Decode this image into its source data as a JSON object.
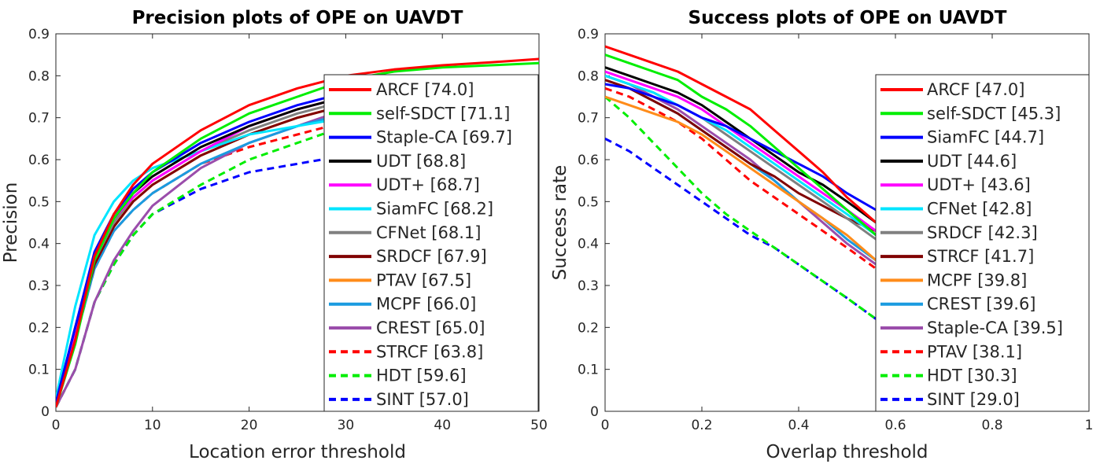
{
  "chart_data": [
    {
      "type": "line",
      "title": "Precision plots of OPE on UAVDT",
      "xlabel": "Location error threshold",
      "ylabel": "Precision",
      "xlim": [
        0,
        50
      ],
      "ylim": [
        0,
        0.9
      ],
      "xticks": [
        "0",
        "10",
        "20",
        "30",
        "40",
        "50"
      ],
      "yticks": [
        "0",
        "0.1",
        "0.2",
        "0.3",
        "0.4",
        "0.5",
        "0.6",
        "0.7",
        "0.8",
        "0.9"
      ],
      "legend_position": "right",
      "series": [
        {
          "name": "ARCF [74.0]",
          "color": "#ff0000",
          "dash": "solid",
          "x": [
            0,
            2,
            4,
            6,
            8,
            10,
            15,
            20,
            25,
            30,
            35,
            40,
            45,
            50
          ],
          "y": [
            0.01,
            0.17,
            0.37,
            0.47,
            0.54,
            0.59,
            0.67,
            0.73,
            0.77,
            0.8,
            0.815,
            0.825,
            0.832,
            0.84
          ]
        },
        {
          "name": "self-SDCT [71.1]",
          "color": "#00ee00",
          "dash": "solid",
          "x": [
            0,
            2,
            4,
            6,
            8,
            10,
            15,
            20,
            25,
            30,
            35,
            40,
            45,
            50
          ],
          "y": [
            0.01,
            0.16,
            0.36,
            0.46,
            0.52,
            0.57,
            0.65,
            0.71,
            0.75,
            0.79,
            0.81,
            0.82,
            0.825,
            0.83
          ]
        },
        {
          "name": "Staple-CA [69.7]",
          "color": "#0000ff",
          "dash": "solid",
          "x": [
            0,
            2,
            4,
            6,
            8,
            10,
            15,
            20,
            25,
            30
          ],
          "y": [
            0.02,
            0.2,
            0.38,
            0.47,
            0.53,
            0.57,
            0.64,
            0.69,
            0.73,
            0.76
          ]
        },
        {
          "name": "UDT [68.8]",
          "color": "#000000",
          "dash": "solid",
          "x": [
            0,
            2,
            4,
            6,
            8,
            10,
            15,
            20,
            25,
            30
          ],
          "y": [
            0.02,
            0.2,
            0.37,
            0.46,
            0.52,
            0.56,
            0.63,
            0.68,
            0.72,
            0.75
          ]
        },
        {
          "name": "UDT+ [68.7]",
          "color": "#ff00ff",
          "dash": "solid",
          "x": [
            0,
            2,
            4,
            6,
            8,
            10,
            15,
            20,
            25,
            30
          ],
          "y": [
            0.02,
            0.19,
            0.37,
            0.46,
            0.51,
            0.55,
            0.62,
            0.68,
            0.72,
            0.75
          ]
        },
        {
          "name": "SiamFC [68.2]",
          "color": "#00e5ff",
          "dash": "solid",
          "x": [
            0,
            2,
            4,
            6,
            8,
            10,
            15,
            20,
            25,
            30
          ],
          "y": [
            0.03,
            0.25,
            0.42,
            0.5,
            0.55,
            0.58,
            0.62,
            0.66,
            0.68,
            0.7
          ]
        },
        {
          "name": "CFNet [68.1]",
          "color": "#808080",
          "dash": "solid",
          "x": [
            0,
            2,
            4,
            6,
            8,
            10,
            15,
            20,
            25,
            30
          ],
          "y": [
            0.02,
            0.19,
            0.36,
            0.45,
            0.51,
            0.55,
            0.62,
            0.67,
            0.71,
            0.74
          ]
        },
        {
          "name": "SRDCF [67.9]",
          "color": "#800000",
          "dash": "solid",
          "x": [
            0,
            2,
            4,
            6,
            8,
            10,
            15,
            20,
            25,
            30
          ],
          "y": [
            0.02,
            0.18,
            0.35,
            0.44,
            0.5,
            0.54,
            0.61,
            0.66,
            0.7,
            0.73
          ]
        },
        {
          "name": "PTAV [67.5]",
          "color": "#ff8c1a",
          "dash": "solid",
          "x": [
            0,
            2,
            4,
            6,
            8,
            10,
            15,
            20,
            25,
            30
          ],
          "y": [
            0.02,
            0.18,
            0.35,
            0.44,
            0.5,
            0.54,
            0.61,
            0.66,
            0.7,
            0.73
          ]
        },
        {
          "name": "MCPF [66.0]",
          "color": "#1a9be0",
          "dash": "solid",
          "x": [
            0,
            2,
            4,
            6,
            8,
            10,
            15,
            20,
            25,
            30
          ],
          "y": [
            0.02,
            0.17,
            0.34,
            0.43,
            0.48,
            0.52,
            0.59,
            0.64,
            0.68,
            0.71
          ]
        },
        {
          "name": "CREST [65.0]",
          "color": "#9b4dab",
          "dash": "solid",
          "x": [
            0,
            2,
            4,
            6,
            8,
            10,
            15,
            20,
            25,
            30
          ],
          "y": [
            0.01,
            0.1,
            0.26,
            0.36,
            0.43,
            0.49,
            0.58,
            0.64,
            0.68,
            0.72
          ]
        },
        {
          "name": "STRCF [63.8]",
          "color": "#ff0000",
          "dash": "dashed",
          "x": [
            0,
            2,
            4,
            6,
            8,
            10,
            15,
            20,
            25,
            30
          ],
          "y": [
            0.02,
            0.17,
            0.34,
            0.43,
            0.48,
            0.52,
            0.59,
            0.63,
            0.66,
            0.69
          ]
        },
        {
          "name": "HDT [59.6]",
          "color": "#00ee00",
          "dash": "dashed",
          "x": [
            0,
            2,
            4,
            6,
            8,
            10,
            15,
            20,
            25,
            30
          ],
          "y": [
            0.01,
            0.1,
            0.26,
            0.35,
            0.42,
            0.47,
            0.54,
            0.6,
            0.64,
            0.68
          ]
        },
        {
          "name": "SINT [57.0]",
          "color": "#0000ff",
          "dash": "dashed",
          "x": [
            0,
            2,
            4,
            6,
            8,
            10,
            15,
            20,
            25,
            30
          ],
          "y": [
            0.01,
            0.1,
            0.26,
            0.35,
            0.42,
            0.47,
            0.53,
            0.57,
            0.59,
            0.61
          ]
        }
      ]
    },
    {
      "type": "line",
      "title": "Success plots of OPE on UAVDT",
      "xlabel": "Overlap threshold",
      "ylabel": "Success rate",
      "xlim": [
        0,
        1
      ],
      "ylim": [
        0,
        0.9
      ],
      "xticks": [
        "0",
        "0.2",
        "0.4",
        "0.6",
        "0.8",
        "1"
      ],
      "yticks": [
        "0",
        "0.1",
        "0.2",
        "0.3",
        "0.4",
        "0.5",
        "0.6",
        "0.7",
        "0.8",
        "0.9"
      ],
      "legend_position": "right",
      "series": [
        {
          "name": "ARCF [47.0]",
          "color": "#ff0000",
          "dash": "solid",
          "x": [
            0,
            0.05,
            0.1,
            0.15,
            0.2,
            0.25,
            0.3,
            0.35,
            0.4,
            0.45,
            0.5,
            0.56
          ],
          "y": [
            0.87,
            0.85,
            0.83,
            0.81,
            0.78,
            0.75,
            0.72,
            0.67,
            0.62,
            0.57,
            0.51,
            0.45
          ]
        },
        {
          "name": "self-SDCT [45.3]",
          "color": "#00ee00",
          "dash": "solid",
          "x": [
            0,
            0.05,
            0.1,
            0.15,
            0.2,
            0.25,
            0.3,
            0.35,
            0.4,
            0.45,
            0.5,
            0.56
          ],
          "y": [
            0.85,
            0.83,
            0.81,
            0.79,
            0.75,
            0.72,
            0.68,
            0.63,
            0.58,
            0.53,
            0.48,
            0.42
          ]
        },
        {
          "name": "SiamFC [44.7]",
          "color": "#0000ff",
          "dash": "solid",
          "x": [
            0,
            0.05,
            0.1,
            0.15,
            0.2,
            0.25,
            0.3,
            0.35,
            0.4,
            0.45,
            0.5,
            0.56
          ],
          "y": [
            0.78,
            0.77,
            0.75,
            0.73,
            0.7,
            0.68,
            0.65,
            0.62,
            0.59,
            0.56,
            0.52,
            0.48
          ]
        },
        {
          "name": "UDT [44.6]",
          "color": "#000000",
          "dash": "solid",
          "x": [
            0,
            0.05,
            0.1,
            0.15,
            0.2,
            0.25,
            0.3,
            0.35,
            0.4,
            0.45,
            0.5,
            0.56
          ],
          "y": [
            0.82,
            0.8,
            0.78,
            0.76,
            0.73,
            0.69,
            0.65,
            0.61,
            0.57,
            0.54,
            0.5,
            0.45
          ]
        },
        {
          "name": "UDT+ [43.6]",
          "color": "#ff00ff",
          "dash": "solid",
          "x": [
            0,
            0.05,
            0.1,
            0.15,
            0.2,
            0.25,
            0.3,
            0.35,
            0.4,
            0.45,
            0.5,
            0.56
          ],
          "y": [
            0.81,
            0.79,
            0.77,
            0.75,
            0.72,
            0.68,
            0.64,
            0.6,
            0.56,
            0.52,
            0.48,
            0.43
          ]
        },
        {
          "name": "CFNet [42.8]",
          "color": "#00e5ff",
          "dash": "solid",
          "x": [
            0,
            0.05,
            0.1,
            0.15,
            0.2,
            0.25,
            0.3,
            0.35,
            0.4,
            0.45,
            0.5,
            0.56
          ],
          "y": [
            0.8,
            0.78,
            0.76,
            0.73,
            0.7,
            0.67,
            0.63,
            0.59,
            0.55,
            0.51,
            0.47,
            0.42
          ]
        },
        {
          "name": "SRDCF [42.3]",
          "color": "#808080",
          "dash": "solid",
          "x": [
            0,
            0.05,
            0.1,
            0.15,
            0.2,
            0.25,
            0.3,
            0.35,
            0.4,
            0.45,
            0.5,
            0.56
          ],
          "y": [
            0.8,
            0.78,
            0.76,
            0.73,
            0.7,
            0.66,
            0.62,
            0.58,
            0.54,
            0.5,
            0.46,
            0.41
          ]
        },
        {
          "name": "STRCF [41.7]",
          "color": "#800000",
          "dash": "solid",
          "x": [
            0,
            0.05,
            0.1,
            0.15,
            0.2,
            0.25,
            0.3,
            0.35,
            0.4,
            0.45,
            0.5,
            0.56
          ],
          "y": [
            0.79,
            0.77,
            0.74,
            0.71,
            0.67,
            0.63,
            0.59,
            0.56,
            0.52,
            0.49,
            0.46,
            0.43
          ]
        },
        {
          "name": "MCPF [39.8]",
          "color": "#ff8c1a",
          "dash": "solid",
          "x": [
            0,
            0.05,
            0.1,
            0.15,
            0.2,
            0.25,
            0.3,
            0.35,
            0.4,
            0.45,
            0.5,
            0.56
          ],
          "y": [
            0.75,
            0.73,
            0.71,
            0.69,
            0.66,
            0.62,
            0.58,
            0.54,
            0.5,
            0.46,
            0.42,
            0.36
          ]
        },
        {
          "name": "CREST [39.6]",
          "color": "#1a9be0",
          "dash": "solid",
          "x": [
            0,
            0.05,
            0.1,
            0.15,
            0.2,
            0.25,
            0.3,
            0.35,
            0.4,
            0.45,
            0.5,
            0.56
          ],
          "y": [
            0.79,
            0.77,
            0.74,
            0.71,
            0.67,
            0.63,
            0.59,
            0.55,
            0.5,
            0.46,
            0.41,
            0.36
          ]
        },
        {
          "name": "Staple-CA [39.5]",
          "color": "#9b4dab",
          "dash": "solid",
          "x": [
            0,
            0.05,
            0.1,
            0.15,
            0.2,
            0.25,
            0.3,
            0.35,
            0.4,
            0.45,
            0.5,
            0.56
          ],
          "y": [
            0.8,
            0.78,
            0.75,
            0.72,
            0.68,
            0.64,
            0.6,
            0.55,
            0.5,
            0.45,
            0.4,
            0.35
          ]
        },
        {
          "name": "PTAV [38.1]",
          "color": "#ff0000",
          "dash": "dashed",
          "x": [
            0,
            0.05,
            0.1,
            0.15,
            0.2,
            0.25,
            0.3,
            0.35,
            0.4,
            0.45,
            0.5,
            0.56
          ],
          "y": [
            0.77,
            0.75,
            0.72,
            0.69,
            0.65,
            0.6,
            0.55,
            0.51,
            0.47,
            0.43,
            0.39,
            0.34
          ]
        },
        {
          "name": "HDT [30.3]",
          "color": "#00ee00",
          "dash": "dashed",
          "x": [
            0,
            0.05,
            0.1,
            0.15,
            0.2,
            0.25,
            0.3,
            0.35,
            0.4,
            0.45,
            0.5,
            0.56
          ],
          "y": [
            0.75,
            0.7,
            0.64,
            0.58,
            0.52,
            0.47,
            0.43,
            0.39,
            0.35,
            0.31,
            0.27,
            0.22
          ]
        },
        {
          "name": "SINT [29.0]",
          "color": "#0000ff",
          "dash": "dashed",
          "x": [
            0,
            0.05,
            0.1,
            0.15,
            0.2,
            0.25,
            0.3,
            0.35,
            0.4,
            0.45,
            0.5,
            0.56
          ],
          "y": [
            0.65,
            0.62,
            0.58,
            0.54,
            0.5,
            0.46,
            0.42,
            0.39,
            0.35,
            0.31,
            0.27,
            0.22
          ]
        }
      ]
    }
  ]
}
